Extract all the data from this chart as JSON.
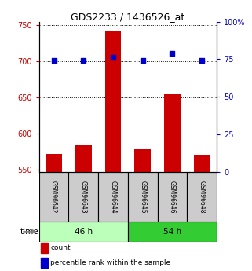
{
  "title": "GDS2233 / 1436526_at",
  "samples": [
    "GSM96642",
    "GSM96643",
    "GSM96644",
    "GSM96645",
    "GSM96646",
    "GSM96648"
  ],
  "count_values": [
    572,
    583,
    742,
    578,
    654,
    570
  ],
  "percentile_values": [
    74,
    74,
    76,
    74,
    79,
    74
  ],
  "ylim_left": [
    547,
    755
  ],
  "ylim_right": [
    0,
    100
  ],
  "yticks_left": [
    550,
    600,
    650,
    700,
    750
  ],
  "yticks_right": [
    0,
    25,
    50,
    75,
    100
  ],
  "ytick_labels_right": [
    "0",
    "25",
    "50",
    "75",
    "100%"
  ],
  "groups": [
    {
      "label": "46 h",
      "indices": [
        0,
        1,
        2
      ],
      "color": "#bbffbb"
    },
    {
      "label": "54 h",
      "indices": [
        3,
        4,
        5
      ],
      "color": "#33cc33"
    }
  ],
  "bar_color": "#cc0000",
  "dot_color": "#0000cc",
  "bar_width": 0.55,
  "left_tick_color": "#cc0000",
  "right_tick_color": "#0000cc",
  "sample_box_color": "#cccccc",
  "time_label": "time",
  "legend_items": [
    {
      "color": "#cc0000",
      "label": "count"
    },
    {
      "color": "#0000cc",
      "label": "percentile rank within the sample"
    }
  ]
}
